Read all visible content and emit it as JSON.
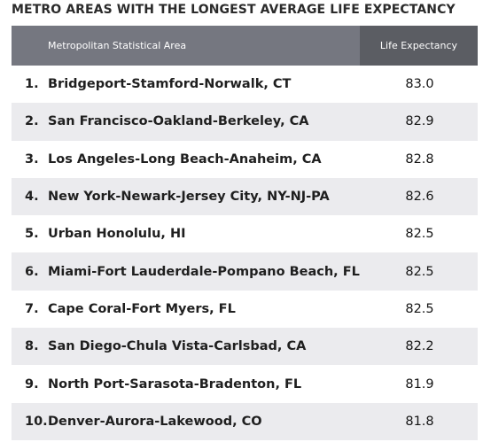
{
  "chart_data": {
    "type": "table",
    "title": "METRO AREAS WITH THE LONGEST AVERAGE LIFE EXPECTANCY",
    "columns": [
      "Metropolitan Statistical Area",
      "Life Expectancy"
    ],
    "rows": [
      {
        "rank": "1.",
        "area": "Bridgeport-Stamford-Norwalk, CT",
        "value": "83.0"
      },
      {
        "rank": "2.",
        "area": "San Francisco-Oakland-Berkeley, CA",
        "value": "82.9"
      },
      {
        "rank": "3.",
        "area": "Los Angeles-Long Beach-Anaheim, CA",
        "value": "82.8"
      },
      {
        "rank": "4.",
        "area": "New York-Newark-Jersey City, NY-NJ-PA",
        "value": "82.6"
      },
      {
        "rank": "5.",
        "area": "Urban Honolulu, HI",
        "value": "82.5"
      },
      {
        "rank": "6.",
        "area": "Miami-Fort Lauderdale-Pompano Beach, FL",
        "value": "82.5"
      },
      {
        "rank": "7.",
        "area": "Cape Coral-Fort Myers, FL",
        "value": "82.5"
      },
      {
        "rank": "8.",
        "area": "San Diego-Chula Vista-Carlsbad, CA",
        "value": "82.2"
      },
      {
        "rank": "9.",
        "area": "North Port-Sarasota-Bradenton, FL",
        "value": "81.9"
      },
      {
        "rank": "10.",
        "area": "Denver-Aurora-Lakewood, CO",
        "value": "81.8"
      }
    ]
  },
  "colors": {
    "header_bg": "#757780",
    "header_value_bg": "#5b5d63",
    "alt_row_bg": "#ebebee"
  }
}
